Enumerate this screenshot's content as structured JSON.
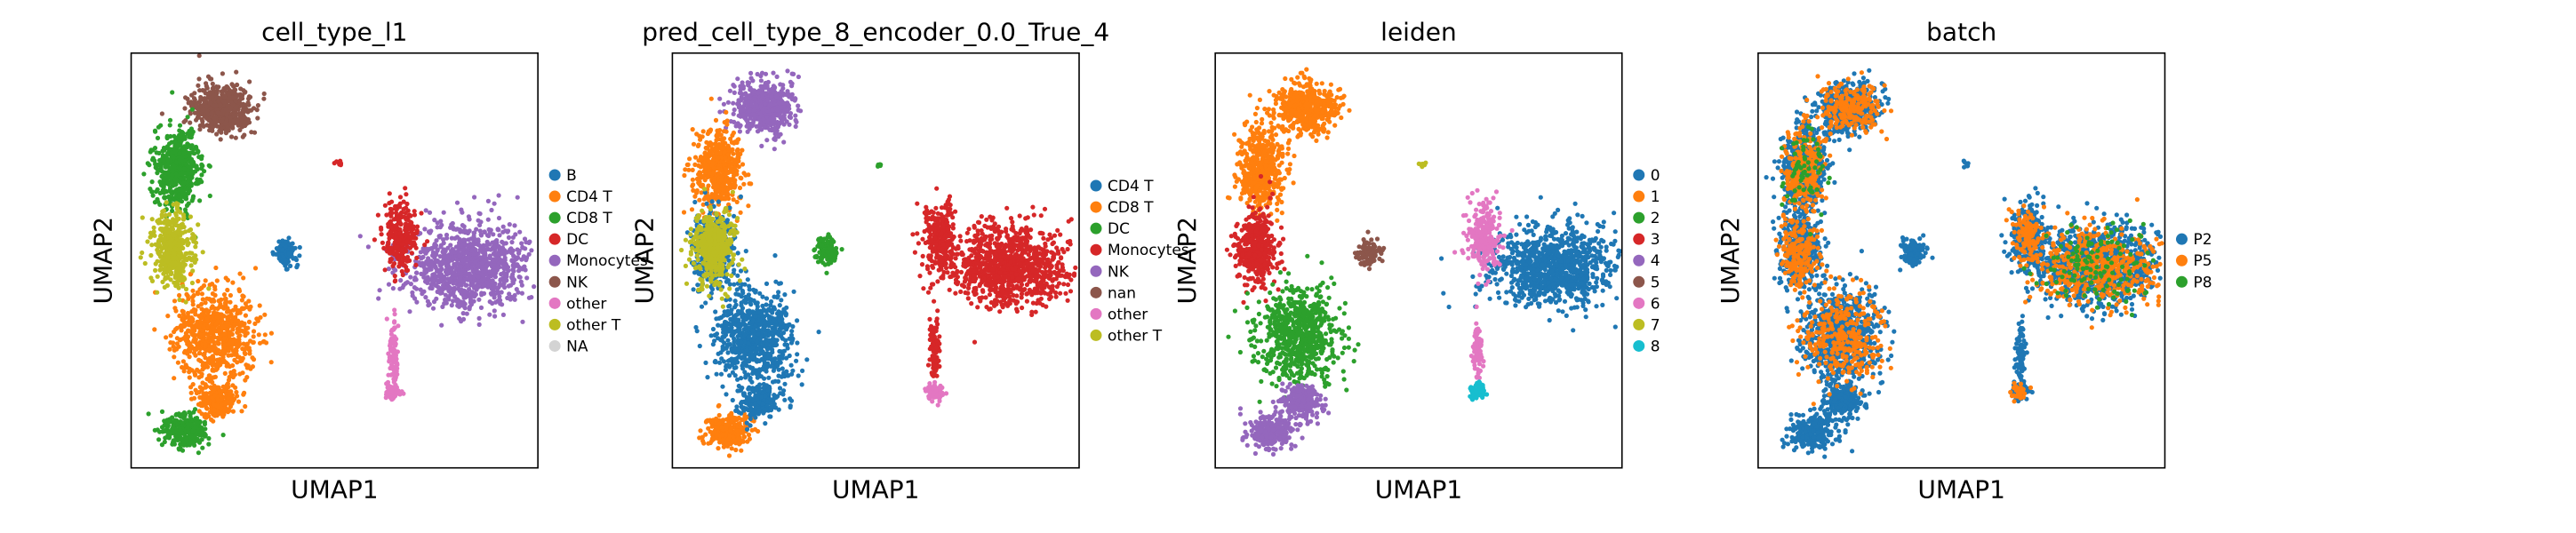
{
  "chart_data": [
    {
      "type": "scatter",
      "title": "cell_type_l1",
      "xlabel": "UMAP1",
      "ylabel": "UMAP2",
      "legend": {
        "entries": [
          "B",
          "CD4 T",
          "CD8 T",
          "DC",
          "Monocytes",
          "NK",
          "other",
          "other T",
          "NA"
        ],
        "colors": [
          "#1f77b4",
          "#ff7f0e",
          "#2ca02c",
          "#d62728",
          "#9467bd",
          "#8c564b",
          "#e377c2",
          "#bcbd22",
          "#d3d3d3"
        ],
        "placement": "right"
      },
      "regions": [
        {
          "label": "NK",
          "color": "#8c564b"
        },
        {
          "label": "CD8 T",
          "color": "#2ca02c"
        },
        {
          "label": "CD4 T",
          "color": "#ff7f0e"
        },
        {
          "label": "other T",
          "color": "#bcbd22"
        },
        {
          "label": "B",
          "color": "#1f77b4"
        },
        {
          "label": "Monocytes",
          "color": "#9467bd"
        },
        {
          "label": "DC",
          "color": "#d62728"
        },
        {
          "label": "other",
          "color": "#e377c2"
        }
      ]
    },
    {
      "type": "scatter",
      "title": "pred_cell_type_8_encoder_0.0_True_4",
      "xlabel": "UMAP1",
      "ylabel": "UMAP2",
      "legend": {
        "entries": [
          "CD4 T",
          "CD8 T",
          "DC",
          "Monocytes",
          "NK",
          "nan",
          "other",
          "other T"
        ],
        "colors": [
          "#1f77b4",
          "#ff7f0e",
          "#2ca02c",
          "#d62728",
          "#9467bd",
          "#8c564b",
          "#e377c2",
          "#bcbd22"
        ],
        "placement": "right"
      },
      "regions": [
        {
          "label": "NK",
          "color": "#9467bd"
        },
        {
          "label": "CD8 T",
          "color": "#ff7f0e"
        },
        {
          "label": "CD4 T",
          "color": "#1f77b4"
        },
        {
          "label": "other T",
          "color": "#bcbd22"
        },
        {
          "label": "Monocytes",
          "color": "#d62728"
        },
        {
          "label": "DC",
          "color": "#2ca02c"
        },
        {
          "label": "other",
          "color": "#e377c2"
        }
      ]
    },
    {
      "type": "scatter",
      "title": "leiden",
      "xlabel": "UMAP1",
      "ylabel": "UMAP2",
      "legend": {
        "entries": [
          "0",
          "1",
          "2",
          "3",
          "4",
          "5",
          "6",
          "7",
          "8"
        ],
        "colors": [
          "#1f77b4",
          "#ff7f0e",
          "#2ca02c",
          "#d62728",
          "#9467bd",
          "#8c564b",
          "#e377c2",
          "#bcbd22",
          "#17becf"
        ],
        "placement": "right"
      },
      "regions": [
        {
          "label": "1",
          "color": "#ff7f0e"
        },
        {
          "label": "3",
          "color": "#d62728"
        },
        {
          "label": "2",
          "color": "#2ca02c"
        },
        {
          "label": "4",
          "color": "#9467bd"
        },
        {
          "label": "0",
          "color": "#1f77b4"
        },
        {
          "label": "5",
          "color": "#8c564b"
        },
        {
          "label": "6",
          "color": "#e377c2"
        },
        {
          "label": "7",
          "color": "#bcbd22"
        },
        {
          "label": "8",
          "color": "#17becf"
        }
      ]
    },
    {
      "type": "scatter",
      "title": "batch",
      "xlabel": "UMAP1",
      "ylabel": "UMAP2",
      "legend": {
        "entries": [
          "P2",
          "P5",
          "P8"
        ],
        "colors": [
          "#1f77b4",
          "#ff7f0e",
          "#2ca02c"
        ],
        "placement": "right"
      },
      "regions": [
        {
          "label": "P2",
          "color": "#1f77b4"
        },
        {
          "label": "P5",
          "color": "#ff7f0e"
        },
        {
          "label": "P8",
          "color": "#2ca02c"
        }
      ]
    }
  ]
}
